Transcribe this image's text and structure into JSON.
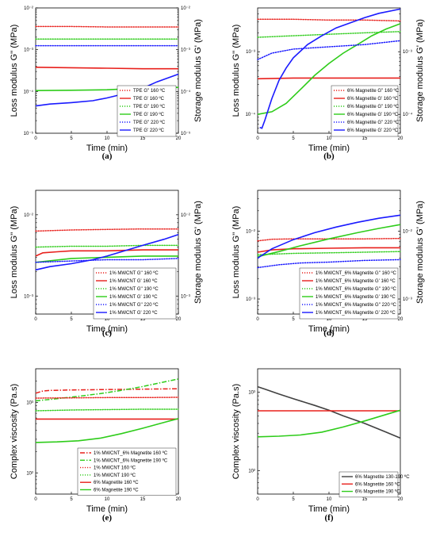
{
  "chart_data": [
    {
      "panel": "a",
      "type": "line",
      "caption": "(a)",
      "xlabel": "Time (min)",
      "ylabel": "Loss modulus G'' (MPa)",
      "ylabel_right": "Storage modulus G' (MPa)",
      "xlim": [
        0,
        20
      ],
      "xticks": [
        0,
        5,
        10,
        15,
        20
      ],
      "ylog": true,
      "ylim": [
        1e-05,
        0.01
      ],
      "yticks_left": [
        "10⁻²",
        "10⁻³",
        "10⁻⁴",
        "10⁻⁵"
      ],
      "yticks_right": [
        "10⁻²",
        "10⁻³",
        "10⁻⁴",
        "10⁻⁵"
      ],
      "legend_position": "bottom-right",
      "series": [
        {
          "name": "TPE G'' 160 ºC",
          "color": "#e8201c",
          "dash": "dot",
          "x": [
            0,
            5,
            10,
            15,
            20
          ],
          "y": [
            0.0036,
            0.0036,
            0.0035,
            0.0035,
            0.0035
          ]
        },
        {
          "name": "TPE G' 160 ºC",
          "color": "#e8201c",
          "dash": "solid",
          "x": [
            0,
            5,
            10,
            15,
            20
          ],
          "y": [
            0.00038,
            0.00037,
            0.00036,
            0.00035,
            0.00035
          ]
        },
        {
          "name": "TPE G'' 190 ºC",
          "color": "#2ecc1a",
          "dash": "dot",
          "x": [
            0,
            5,
            10,
            15,
            20
          ],
          "y": [
            0.0018,
            0.0018,
            0.0018,
            0.0018,
            0.0018
          ]
        },
        {
          "name": "TPE G' 190 ºC",
          "color": "#2ecc1a",
          "dash": "solid",
          "x": [
            0,
            5,
            10,
            15,
            20
          ],
          "y": [
            0.000105,
            0.000107,
            0.00011,
            0.00012,
            0.000125
          ]
        },
        {
          "name": "TPE G'' 220 ºC",
          "color": "#1a1aff",
          "dash": "dot",
          "x": [
            0,
            5,
            10,
            15,
            20
          ],
          "y": [
            0.00125,
            0.00125,
            0.00125,
            0.00125,
            0.00125
          ]
        },
        {
          "name": "TPE G' 220 ºC",
          "color": "#1a1aff",
          "dash": "solid",
          "x": [
            0,
            2,
            5,
            8,
            10,
            12,
            15,
            17,
            20
          ],
          "y": [
            4.5e-05,
            5e-05,
            5.4e-05,
            6e-05,
            7e-05,
            8.5e-05,
            0.00012,
            0.00017,
            0.00026
          ]
        }
      ]
    },
    {
      "panel": "b",
      "type": "line",
      "caption": "(b)",
      "xlabel": "Time (min)",
      "ylabel": "Loss modulus G'' (MPa)",
      "ylabel_right": "Storage modulus G' (MPa)",
      "xlim": [
        0,
        20
      ],
      "xticks": [
        0,
        5,
        10,
        15,
        20
      ],
      "ylog": true,
      "ylim": [
        5e-05,
        0.005
      ],
      "yticks_left": [
        "10⁻³",
        "10⁻⁴"
      ],
      "yticks_right": [
        "10⁻³",
        "10⁻⁴"
      ],
      "legend_position": "bottom-right",
      "series": [
        {
          "name": "6% Magnetite G'' 160 ºC",
          "color": "#e8201c",
          "dash": "dot",
          "x": [
            0,
            5,
            10,
            15,
            20
          ],
          "y": [
            0.0033,
            0.0033,
            0.0032,
            0.0032,
            0.0031
          ]
        },
        {
          "name": "6% Magnetite G' 160 ºC",
          "color": "#e8201c",
          "dash": "solid",
          "x": [
            0,
            5,
            10,
            15,
            20
          ],
          "y": [
            0.00037,
            0.00038,
            0.00038,
            0.00038,
            0.00038
          ]
        },
        {
          "name": "6% Magnetite G'' 190 ºC",
          "color": "#2ecc1a",
          "dash": "dot",
          "x": [
            0,
            5,
            10,
            15,
            20
          ],
          "y": [
            0.0017,
            0.0018,
            0.0019,
            0.002,
            0.0021
          ]
        },
        {
          "name": "6% Magnetite G' 190 ºC",
          "color": "#2ecc1a",
          "dash": "solid",
          "x": [
            0,
            2,
            4,
            6,
            8,
            10,
            12,
            14,
            16,
            18,
            20
          ],
          "y": [
            0.0001,
            0.00011,
            0.00015,
            0.00025,
            0.00042,
            0.00065,
            0.00095,
            0.0013,
            0.0018,
            0.0023,
            0.0028
          ]
        },
        {
          "name": "6% Magnetite G'' 220 ºC",
          "color": "#1a1aff",
          "dash": "dot",
          "x": [
            0,
            2,
            5,
            10,
            15,
            20
          ],
          "y": [
            0.00075,
            0.00095,
            0.0011,
            0.0012,
            0.0013,
            0.0015
          ]
        },
        {
          "name": "6% Magnetite G' 220 ºC",
          "color": "#1a1aff",
          "dash": "solid",
          "x": [
            0.3,
            0.6,
            1,
            1.5,
            2,
            3,
            4,
            5,
            7,
            9,
            11,
            13,
            15,
            17,
            20
          ],
          "y": [
            6.2e-05,
            6e-05,
            8e-05,
            0.00012,
            0.00018,
            0.00035,
            0.00055,
            0.0008,
            0.0013,
            0.0018,
            0.0024,
            0.0029,
            0.0035,
            0.0041,
            0.0048
          ]
        }
      ]
    },
    {
      "panel": "c",
      "type": "line",
      "caption": "(c)",
      "xlabel": "Time (min)",
      "ylabel": "Loss modulus G'' (MPa)",
      "ylabel_right": "Storage modulus G' (MPa)",
      "xlim": [
        0,
        20
      ],
      "xticks": [
        0,
        5,
        10,
        15,
        20
      ],
      "ylog": true,
      "ylim": [
        0.0006,
        0.02
      ],
      "yticks_left": [
        "10⁻²",
        "10⁻³"
      ],
      "yticks_right": [
        "10⁻²",
        "10⁻³"
      ],
      "legend_position": "bottom-right",
      "series": [
        {
          "name": "1% MWCNT G'' 160 ºC",
          "color": "#e8201c",
          "dash": "dot",
          "x": [
            0,
            5,
            10,
            15,
            20
          ],
          "y": [
            0.0063,
            0.0065,
            0.0066,
            0.0067,
            0.0067
          ]
        },
        {
          "name": "1% MWCNT G' 160 ºC",
          "color": "#e8201c",
          "dash": "solid",
          "x": [
            0,
            1,
            3,
            5,
            10,
            15,
            20
          ],
          "y": [
            0.0031,
            0.0034,
            0.0035,
            0.0036,
            0.0036,
            0.0037,
            0.0037
          ]
        },
        {
          "name": "1% MWCNT G'' 190 ºC",
          "color": "#2ecc1a",
          "dash": "dot",
          "x": [
            0,
            5,
            10,
            15,
            20
          ],
          "y": [
            0.004,
            0.0041,
            0.0041,
            0.0042,
            0.0042
          ]
        },
        {
          "name": "1% MWCNT G' 190 ºC",
          "color": "#2ecc1a",
          "dash": "solid",
          "x": [
            0,
            5,
            10,
            15,
            20
          ],
          "y": [
            0.0026,
            0.0029,
            0.003,
            0.0031,
            0.0031
          ]
        },
        {
          "name": "1% MWCNT G'' 220 ºC",
          "color": "#1a1aff",
          "dash": "dot",
          "x": [
            0,
            5,
            10,
            15,
            20
          ],
          "y": [
            0.0026,
            0.0027,
            0.0028,
            0.0028,
            0.0029
          ]
        },
        {
          "name": "1% MWCNT G' 220 ºC",
          "color": "#1a1aff",
          "dash": "solid",
          "x": [
            0,
            2,
            5,
            8,
            10,
            12,
            15,
            18,
            20
          ],
          "y": [
            0.0021,
            0.0023,
            0.0025,
            0.0028,
            0.0031,
            0.0035,
            0.0042,
            0.005,
            0.0057
          ]
        }
      ]
    },
    {
      "panel": "d",
      "type": "line",
      "caption": "(d)",
      "xlabel": "Time (min)",
      "ylabel": "Loss modulus G'' (MPa)",
      "ylabel_right": "Storage modulus G' (MPa)",
      "xlim": [
        0,
        20
      ],
      "xticks": [
        0,
        5,
        10,
        15,
        20
      ],
      "ylog": true,
      "ylim": [
        0.0006,
        0.04
      ],
      "yticks_left": [
        "10⁻²",
        "10⁻³"
      ],
      "yticks_right": [
        "10⁻²",
        "10⁻³"
      ],
      "legend_position": "bottom-right",
      "series": [
        {
          "name": "1% MWCNT_6% Magnetite G'' 160 ºC",
          "color": "#e8201c",
          "dash": "dot",
          "x": [
            0,
            2,
            5,
            10,
            15,
            20
          ],
          "y": [
            0.0072,
            0.0076,
            0.0077,
            0.0077,
            0.0077,
            0.0078
          ]
        },
        {
          "name": "1% MWCNT_6% Magnetite G' 160 ºC",
          "color": "#e8201c",
          "dash": "solid",
          "x": [
            0,
            2,
            5,
            10,
            15,
            20
          ],
          "y": [
            0.0049,
            0.0053,
            0.0055,
            0.0056,
            0.0057,
            0.0057
          ]
        },
        {
          "name": "1% MWCNT_6% Magnetite G'' 190 ºC",
          "color": "#2ecc1a",
          "dash": "dot",
          "x": [
            0,
            5,
            10,
            15,
            20
          ],
          "y": [
            0.0045,
            0.0047,
            0.0048,
            0.0049,
            0.005
          ]
        },
        {
          "name": "1% MWCNT_6% Magnetite G' 190 ºC",
          "color": "#2ecc1a",
          "dash": "solid",
          "x": [
            0,
            3,
            6,
            10,
            14,
            17,
            20
          ],
          "y": [
            0.0042,
            0.005,
            0.0061,
            0.0077,
            0.0095,
            0.011,
            0.0125
          ]
        },
        {
          "name": "1% MWCNT_6% Magnetite G'' 220 ºC",
          "color": "#1a1aff",
          "dash": "dot",
          "x": [
            0,
            3,
            6,
            10,
            15,
            20
          ],
          "y": [
            0.0029,
            0.0032,
            0.0034,
            0.0035,
            0.0037,
            0.0038
          ]
        },
        {
          "name": "1% MWCNT_6% Magnetite G' 220 ºC",
          "color": "#1a1aff",
          "dash": "solid",
          "x": [
            0,
            2,
            5,
            8,
            11,
            14,
            17,
            20
          ],
          "y": [
            0.004,
            0.0055,
            0.0075,
            0.0095,
            0.0115,
            0.0135,
            0.0155,
            0.0172
          ]
        }
      ]
    },
    {
      "panel": "e",
      "type": "line",
      "caption": "(e)",
      "xlabel": "Time (min)",
      "ylabel": "Complex viscosity (Pa.s)",
      "xlim": [
        0,
        20
      ],
      "xticks": [
        0,
        5,
        10,
        15,
        20
      ],
      "ylog": true,
      "ylim": [
        50,
        3000
      ],
      "yticks_left": [
        "10³",
        "10²"
      ],
      "legend_position": "bottom-right",
      "series": [
        {
          "name": "1% MWCNT_6% Magnetite 160 ºC",
          "color": "#e8201c",
          "dash": "dashdot",
          "x": [
            0,
            1,
            2,
            5,
            10,
            15,
            20
          ],
          "y": [
            1350,
            1450,
            1480,
            1500,
            1520,
            1540,
            1560
          ]
        },
        {
          "name": "1% MWCNT_6% Magnetite 190 ºC",
          "color": "#2ecc1a",
          "dash": "dashdot",
          "x": [
            0,
            3,
            6,
            9,
            12,
            15,
            18,
            20
          ],
          "y": [
            1050,
            1130,
            1220,
            1330,
            1480,
            1680,
            1950,
            2150
          ]
        },
        {
          "name": "1% MWCNT 160 ºC",
          "color": "#e8201c",
          "dash": "dot",
          "x": [
            0,
            5,
            10,
            15,
            20
          ],
          "y": [
            1150,
            1160,
            1170,
            1170,
            1180
          ]
        },
        {
          "name": "1% MWCNT 190 ºC",
          "color": "#2ecc1a",
          "dash": "dot",
          "x": [
            0,
            5,
            10,
            15,
            20
          ],
          "y": [
            760,
            780,
            790,
            800,
            800
          ]
        },
        {
          "name": "6% Magnetite 160 ºC",
          "color": "#e8201c",
          "dash": "solid",
          "x": [
            0,
            5,
            10,
            15,
            20
          ],
          "y": [
            580,
            580,
            580,
            580,
            580
          ]
        },
        {
          "name": "6% Magnetite 190 ºC",
          "color": "#2ecc1a",
          "dash": "solid",
          "x": [
            0,
            3,
            6,
            9,
            12,
            15,
            18,
            20
          ],
          "y": [
            270,
            275,
            285,
            310,
            360,
            430,
            520,
            590
          ]
        }
      ]
    },
    {
      "panel": "f",
      "type": "line",
      "caption": "(f)",
      "xlabel": "Time (min)",
      "ylabel": "Complex viscosity (Pa.s)",
      "xlim": [
        0,
        20
      ],
      "xticks": [
        0,
        5,
        10,
        15,
        20
      ],
      "ylog": true,
      "ylim": [
        50,
        2000
      ],
      "yticks_left": [
        "10³",
        "10²"
      ],
      "legend_position": "bottom-right",
      "series": [
        {
          "name": "6% Magnetite 130-190 ºC",
          "color": "#404040",
          "dash": "solid",
          "x": [
            0,
            1,
            3,
            5,
            8,
            10,
            12,
            15,
            18,
            20
          ],
          "y": [
            1180,
            1100,
            950,
            830,
            680,
            590,
            500,
            400,
            310,
            260
          ]
        },
        {
          "name": "6% Magnetite 160 ºC",
          "color": "#e8201c",
          "dash": "solid",
          "x": [
            0,
            5,
            10,
            15,
            20
          ],
          "y": [
            580,
            580,
            580,
            580,
            580
          ]
        },
        {
          "name": "6% Magnetite 190 ºC",
          "color": "#2ecc1a",
          "dash": "solid",
          "x": [
            0,
            3,
            6,
            9,
            12,
            15,
            18,
            20
          ],
          "y": [
            270,
            275,
            285,
            310,
            360,
            430,
            520,
            590
          ]
        }
      ]
    }
  ]
}
